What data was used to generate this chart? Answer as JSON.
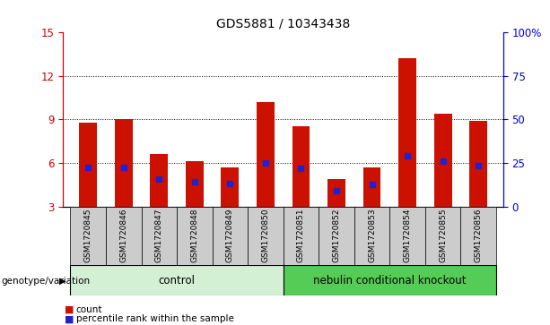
{
  "title": "GDS5881 / 10343438",
  "samples": [
    "GSM1720845",
    "GSM1720846",
    "GSM1720847",
    "GSM1720848",
    "GSM1720849",
    "GSM1720850",
    "GSM1720851",
    "GSM1720852",
    "GSM1720853",
    "GSM1720854",
    "GSM1720855",
    "GSM1720856"
  ],
  "red_heights": [
    8.8,
    9.0,
    6.6,
    6.1,
    5.7,
    10.2,
    8.5,
    4.9,
    5.7,
    13.2,
    9.4,
    8.9
  ],
  "blue_positions": [
    5.7,
    5.7,
    4.9,
    4.7,
    4.6,
    6.0,
    5.6,
    4.1,
    4.5,
    6.5,
    6.1,
    5.8
  ],
  "ylim_left": [
    3,
    15
  ],
  "ylim_right": [
    0,
    100
  ],
  "yticks_left": [
    3,
    6,
    9,
    12,
    15
  ],
  "yticks_right": [
    0,
    25,
    50,
    75,
    100
  ],
  "ytick_labels_right": [
    "0",
    "25",
    "50",
    "75",
    "100%"
  ],
  "left_tick_color": "#cc0000",
  "right_tick_color": "#0000cc",
  "bar_color": "#cc1100",
  "blue_color": "#2222cc",
  "control_label": "control",
  "knockout_label": "nebulin conditional knockout",
  "control_color": "#d4f0d4",
  "knockout_color": "#55cc55",
  "group_label": "genotype/variation",
  "legend_count": "count",
  "legend_pct": "percentile rank within the sample",
  "n_control": 6,
  "n_knockout": 6,
  "grid_color": "#000000",
  "bar_width": 0.5,
  "blue_marker_size": 5,
  "sample_box_color": "#cccccc"
}
